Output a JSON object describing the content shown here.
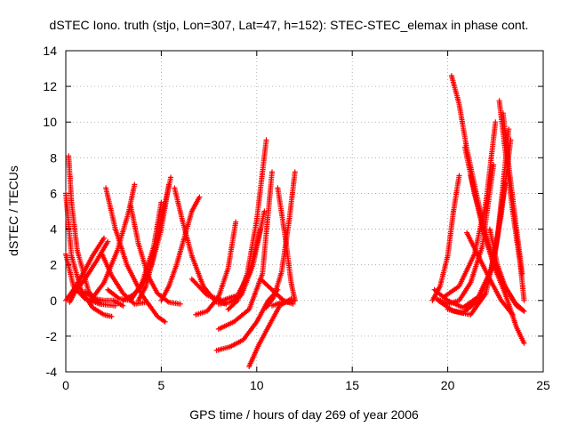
{
  "chart_data": {
    "type": "scatter",
    "title": "dSTEC Iono. truth (stjo, Lon=307, Lat=47, h=152): STEC-STEC_elemax in phase cont.",
    "xlabel": "GPS time / hours of day 269 of year 2006",
    "ylabel": "dSTEC  / TECUs",
    "xlim": [
      0,
      25
    ],
    "ylim": [
      -4,
      14
    ],
    "xticks": [
      0,
      5,
      10,
      15,
      20,
      25
    ],
    "yticks": [
      -4,
      -2,
      0,
      2,
      4,
      6,
      8,
      10,
      12,
      14
    ],
    "grid": true,
    "marker": "+",
    "color": "#ff0000",
    "arcs": [
      {
        "x": [
          0.0,
          0.3,
          0.8,
          1.4,
          2.0,
          2.4
        ],
        "y": [
          6.0,
          2.5,
          0.6,
          -0.4,
          -0.8,
          -0.9
        ]
      },
      {
        "x": [
          0.0,
          0.4,
          1.0,
          1.8,
          2.6
        ],
        "y": [
          2.6,
          0.8,
          0.1,
          -0.2,
          -0.3
        ]
      },
      {
        "x": [
          0.15,
          0.3,
          0.6,
          1.2,
          1.8
        ],
        "y": [
          8.1,
          5.5,
          2.8,
          0.5,
          -0.2
        ]
      },
      {
        "x": [
          0.0,
          0.4,
          0.9,
          1.4,
          2.0
        ],
        "y": [
          0.0,
          0.6,
          1.5,
          2.5,
          3.5
        ]
      },
      {
        "x": [
          0.2,
          0.5,
          1.0,
          1.6,
          2.2
        ],
        "y": [
          -0.1,
          0.5,
          1.2,
          2.2,
          3.3
        ]
      },
      {
        "x": [
          1.0,
          1.5,
          2.0,
          2.5,
          3.0
        ],
        "y": [
          0.5,
          0.1,
          0.0,
          0.0,
          -0.3
        ]
      },
      {
        "x": [
          2.1,
          2.6,
          3.2,
          4.0,
          4.8,
          5.2
        ],
        "y": [
          6.3,
          4.0,
          2.0,
          0.3,
          -0.9,
          -1.2
        ]
      },
      {
        "x": [
          1.9,
          2.4,
          3.0,
          3.6,
          4.2
        ],
        "y": [
          2.6,
          1.4,
          0.4,
          -0.2,
          -0.1
        ]
      },
      {
        "x": [
          1.3,
          2.0,
          2.7,
          3.3,
          3.6
        ],
        "y": [
          0.0,
          1.0,
          2.8,
          5.0,
          6.5
        ]
      },
      {
        "x": [
          2.2,
          2.8,
          3.4,
          4.0,
          4.6,
          5.0
        ],
        "y": [
          0.6,
          0.1,
          0.0,
          1.0,
          3.0,
          5.5
        ]
      },
      {
        "x": [
          3.0,
          3.5,
          4.0,
          4.5,
          5.0,
          5.4
        ],
        "y": [
          0.0,
          0.3,
          0.8,
          2.0,
          4.0,
          6.5
        ]
      },
      {
        "x": [
          3.8,
          4.2,
          4.6,
          5.0,
          5.5
        ],
        "y": [
          0.0,
          0.8,
          2.5,
          4.5,
          6.9
        ]
      },
      {
        "x": [
          3.4,
          3.8,
          4.3,
          4.8,
          5.4,
          6.0
        ],
        "y": [
          5.3,
          3.2,
          1.4,
          0.4,
          -0.1,
          -0.2
        ]
      },
      {
        "x": [
          5.7,
          6.1,
          6.6,
          7.2,
          7.8,
          8.4
        ],
        "y": [
          6.3,
          4.5,
          2.5,
          0.8,
          0.0,
          -0.2
        ]
      },
      {
        "x": [
          5.0,
          5.4,
          5.8,
          6.2,
          6.6,
          7.0
        ],
        "y": [
          0.0,
          0.8,
          2.0,
          3.5,
          5.0,
          5.8
        ]
      },
      {
        "x": [
          6.8,
          7.4,
          8.0,
          8.5,
          8.9
        ],
        "y": [
          -0.8,
          -0.6,
          0.2,
          1.8,
          4.4
        ]
      },
      {
        "x": [
          6.6,
          7.4,
          8.2,
          9.0,
          9.6,
          10.2
        ],
        "y": [
          1.2,
          0.3,
          0.0,
          0.3,
          1.5,
          4.0
        ]
      },
      {
        "x": [
          8.0,
          8.6,
          9.2,
          9.8,
          10.4
        ],
        "y": [
          -0.2,
          -0.1,
          0.3,
          2.0,
          5.0
        ]
      },
      {
        "x": [
          8.5,
          9.0,
          9.5,
          10.0,
          10.5
        ],
        "y": [
          -0.5,
          0.0,
          1.5,
          4.5,
          9.0
        ]
      },
      {
        "x": [
          8.0,
          8.8,
          9.6,
          10.3,
          10.8
        ],
        "y": [
          -1.6,
          -1.2,
          -0.5,
          1.5,
          7.2
        ]
      },
      {
        "x": [
          7.9,
          8.6,
          9.3,
          10.0,
          10.6,
          11.1
        ],
        "y": [
          -2.8,
          -2.6,
          -2.2,
          -1.2,
          0.0,
          0.6
        ]
      },
      {
        "x": [
          9.6,
          10.1,
          10.7,
          11.2,
          11.8
        ],
        "y": [
          -3.7,
          -2.5,
          -1.3,
          -0.3,
          0.1
        ]
      },
      {
        "x": [
          10.5,
          10.9,
          11.3,
          11.7,
          12.0
        ],
        "y": [
          -0.4,
          0.2,
          1.6,
          4.5,
          7.2
        ]
      },
      {
        "x": [
          10.2,
          10.8,
          11.4,
          11.9
        ],
        "y": [
          1.2,
          0.6,
          0.0,
          -0.2
        ]
      },
      {
        "x": [
          11.1,
          11.5,
          11.8,
          12.0
        ],
        "y": [
          6.3,
          3.5,
          1.0,
          0.0
        ]
      },
      {
        "x": [
          10.8,
          11.3,
          11.7,
          12.0
        ],
        "y": [
          -0.3,
          -0.1,
          -0.1,
          0.0
        ]
      },
      {
        "x": [
          19.2,
          19.6,
          20.0,
          20.3,
          20.6
        ],
        "y": [
          0.0,
          0.8,
          2.5,
          5.0,
          7.0
        ]
      },
      {
        "x": [
          19.4,
          20.0,
          20.6,
          21.2,
          21.8,
          22.4
        ],
        "y": [
          0.1,
          -0.2,
          0.0,
          1.0,
          3.0,
          7.6
        ]
      },
      {
        "x": [
          19.3,
          20.0,
          20.8,
          21.6,
          22.4,
          23.0
        ],
        "y": [
          0.6,
          0.0,
          -0.4,
          0.2,
          2.0,
          6.6
        ]
      },
      {
        "x": [
          19.5,
          20.3,
          21.2,
          22.0,
          22.6,
          23.2
        ],
        "y": [
          0.0,
          -0.6,
          -0.8,
          0.4,
          3.5,
          9.6
        ]
      },
      {
        "x": [
          20.0,
          20.8,
          21.6,
          22.3,
          22.8,
          23.3
        ],
        "y": [
          -0.5,
          -0.7,
          0.0,
          1.8,
          4.8,
          9.0
        ]
      },
      {
        "x": [
          19.8,
          20.6,
          21.4,
          22.0,
          22.5
        ],
        "y": [
          0.2,
          0.8,
          2.6,
          5.5,
          10.0
        ]
      },
      {
        "x": [
          20.2,
          20.6,
          21.0,
          21.5,
          22.0,
          22.4
        ],
        "y": [
          12.6,
          11.0,
          8.5,
          6.0,
          3.5,
          2.0
        ]
      },
      {
        "x": [
          20.9,
          21.4,
          21.9,
          22.4,
          23.0,
          23.6,
          24.0
        ],
        "y": [
          8.6,
          6.0,
          4.0,
          2.2,
          0.8,
          -0.3,
          -0.6
        ]
      },
      {
        "x": [
          21.2,
          21.8,
          22.4,
          23.0,
          23.6,
          24.0
        ],
        "y": [
          7.0,
          4.2,
          2.0,
          0.4,
          -1.5,
          -2.4
        ]
      },
      {
        "x": [
          22.2,
          22.6,
          23.0,
          23.5,
          24.0
        ],
        "y": [
          4.0,
          2.0,
          0.8,
          -0.1,
          -0.6
        ]
      },
      {
        "x": [
          22.7,
          23.0,
          23.4,
          23.8,
          24.0
        ],
        "y": [
          11.2,
          8.5,
          5.0,
          2.0,
          0.0
        ]
      },
      {
        "x": [
          22.9,
          23.2,
          23.6,
          23.9
        ],
        "y": [
          10.5,
          7.5,
          4.0,
          1.5
        ]
      },
      {
        "x": [
          21.0,
          21.6,
          22.2,
          22.8,
          23.4
        ],
        "y": [
          3.8,
          2.5,
          1.2,
          0.0,
          -0.8
        ]
      }
    ]
  }
}
